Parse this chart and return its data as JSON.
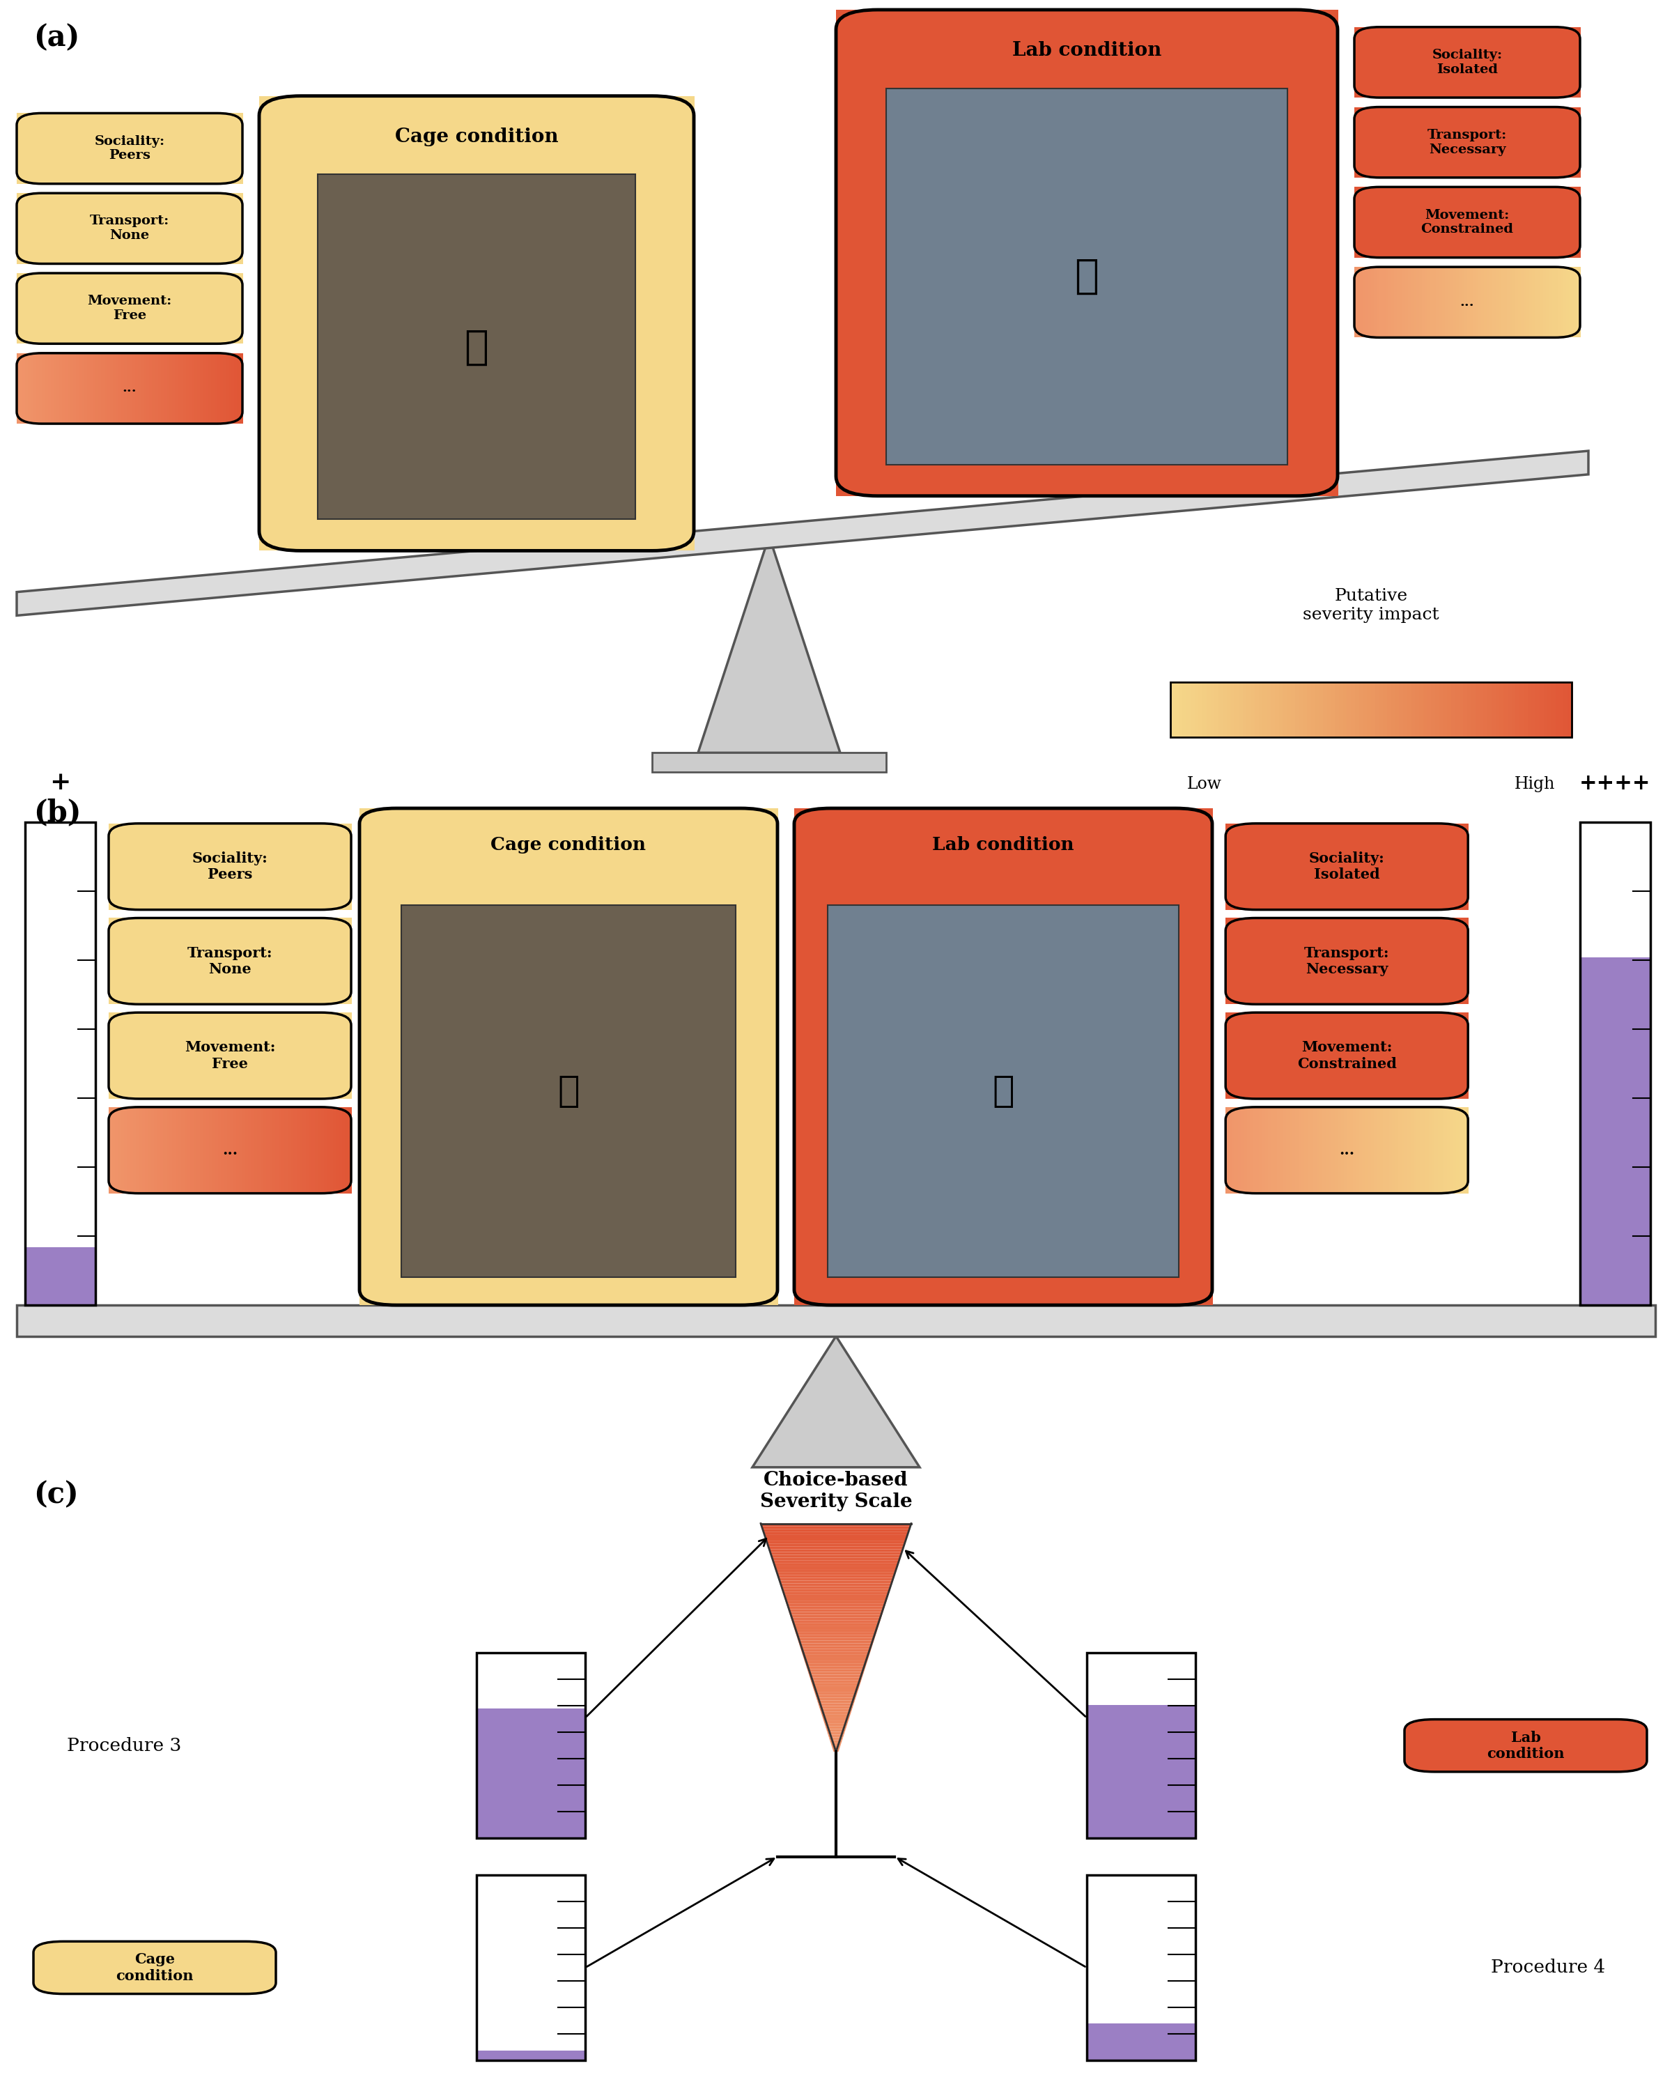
{
  "panel_a_label": "(a)",
  "panel_b_label": "(b)",
  "panel_c_label": "(c)",
  "cage_condition_label": "Cage condition",
  "lab_condition_label": "Lab condition",
  "cage_tags_low": [
    "Sociality:\nPeers",
    "Transport:\nNone",
    "Movement:\nFree",
    "..."
  ],
  "lab_tags_high": [
    "Sociality:\nIsolated",
    "Transport:\nNecessary",
    "Movement:\nConstrained",
    "..."
  ],
  "color_low": "#F5D88A",
  "color_mid": "#F0956A",
  "color_high": "#E05535",
  "color_beam": "#DCDCDC",
  "color_purple": "#9B7FC4",
  "putative_label": "Putative\nseverity impact",
  "low_label": "Low",
  "high_label": "High",
  "plus_low": "+",
  "plus_high": "++++",
  "css_label": "Choice-based\nSeverity Scale",
  "proc3_label": "Procedure 3",
  "proc4_label": "Procedure 4",
  "cage_cond_c_label": "Cage\ncondition",
  "lab_cond_c_label": "Lab\ncondition"
}
